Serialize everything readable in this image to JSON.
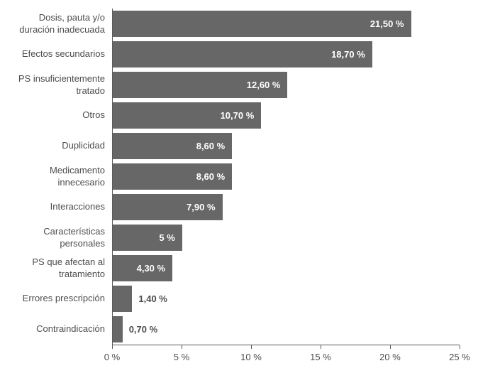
{
  "chart_data": {
    "type": "bar",
    "orientation": "horizontal",
    "title": "",
    "xlabel": "",
    "ylabel": "",
    "xlim": [
      0,
      25
    ],
    "grid": false,
    "legend": false,
    "bar_color": "#676767",
    "label_inside_color": "#ffffff",
    "label_outside_color": "#4d4d4d",
    "inside_label_threshold": 3,
    "categories": [
      "Dosis, pauta y/o duración inadecuada",
      "Efectos secundarios",
      "PS insuficientemente tratado",
      "Otros",
      "Duplicidad",
      "Medicamento innecesario",
      "Interacciones",
      "Características personales",
      "PS que afectan al tratamiento",
      "Errores prescripción",
      "Contraindicación"
    ],
    "values": [
      21.5,
      18.7,
      12.6,
      10.7,
      8.6,
      8.6,
      7.9,
      5,
      4.3,
      1.4,
      0.7
    ],
    "value_labels": [
      "21,50 %",
      "18,70 %",
      "12,60 %",
      "10,70 %",
      "8,60 %",
      "8,60 %",
      "7,90 %",
      "5 %",
      "4,30 %",
      "1,40 %",
      "0,70 %"
    ],
    "x_ticks": [
      0,
      5,
      10,
      15,
      20,
      25
    ],
    "x_tick_labels": [
      "0 %",
      "5 %",
      "10 %",
      "15 %",
      "20 %",
      "25 %"
    ]
  }
}
